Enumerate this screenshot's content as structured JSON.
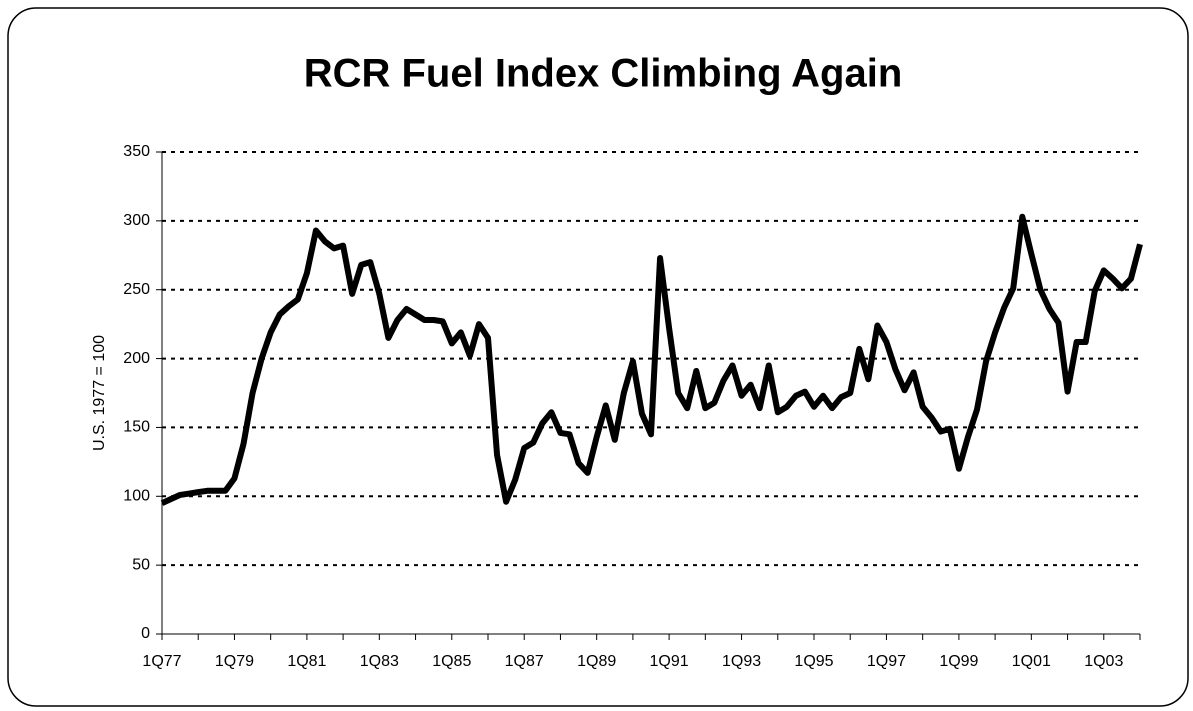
{
  "chart_data": {
    "type": "line",
    "title": "RCR Fuel Index Climbing Again",
    "y_label": "U.S.  1977 = 100",
    "categories": [
      "1Q77",
      null,
      null,
      null,
      null,
      null,
      null,
      null,
      "1Q79",
      null,
      null,
      null,
      null,
      null,
      null,
      null,
      "1Q81",
      null,
      null,
      null,
      null,
      null,
      null,
      null,
      "1Q83",
      null,
      null,
      null,
      null,
      null,
      null,
      null,
      "1Q85",
      null,
      null,
      null,
      null,
      null,
      null,
      null,
      "1Q87",
      null,
      null,
      null,
      null,
      null,
      null,
      null,
      "1Q89",
      null,
      null,
      null,
      null,
      null,
      null,
      null,
      "1Q91",
      null,
      null,
      null,
      null,
      null,
      null,
      null,
      "1Q93",
      null,
      null,
      null,
      null,
      null,
      null,
      null,
      "1Q95",
      null,
      null,
      null,
      null,
      null,
      null,
      null,
      "1Q97",
      null,
      null,
      null,
      null,
      null,
      null,
      null,
      "1Q99",
      null,
      null,
      null,
      null,
      null,
      null,
      null,
      "1Q01",
      null,
      null,
      null,
      null,
      null,
      null,
      null,
      "1Q03",
      null,
      null,
      null,
      null
    ],
    "values": [
      95,
      98,
      101,
      102,
      103,
      104,
      104,
      104,
      113,
      138,
      175,
      200,
      219,
      232,
      238,
      243,
      262,
      293,
      285,
      280,
      282,
      247,
      268,
      270,
      247,
      215,
      228,
      236,
      232,
      228,
      228,
      227,
      211,
      219,
      202,
      225,
      215,
      130,
      96,
      112,
      135,
      139,
      153,
      161,
      146,
      145,
      124,
      117,
      143,
      166,
      141,
      175,
      198,
      160,
      145,
      273,
      222,
      175,
      164,
      191,
      164,
      168,
      184,
      195,
      173,
      181,
      164,
      195,
      161,
      165,
      173,
      176,
      165,
      173,
      164,
      172,
      175,
      207,
      185,
      224,
      212,
      192,
      177,
      190,
      165,
      157,
      147,
      149,
      120,
      143,
      163,
      198,
      219,
      237,
      251,
      303,
      276,
      250,
      236,
      226,
      176,
      212,
      212,
      249,
      264,
      258,
      251,
      258,
      283
    ],
    "color": "#000000",
    "ylim": [
      0,
      350
    ],
    "yticks": [
      0,
      50,
      100,
      150,
      200,
      250,
      300,
      350
    ],
    "grid": true
  }
}
